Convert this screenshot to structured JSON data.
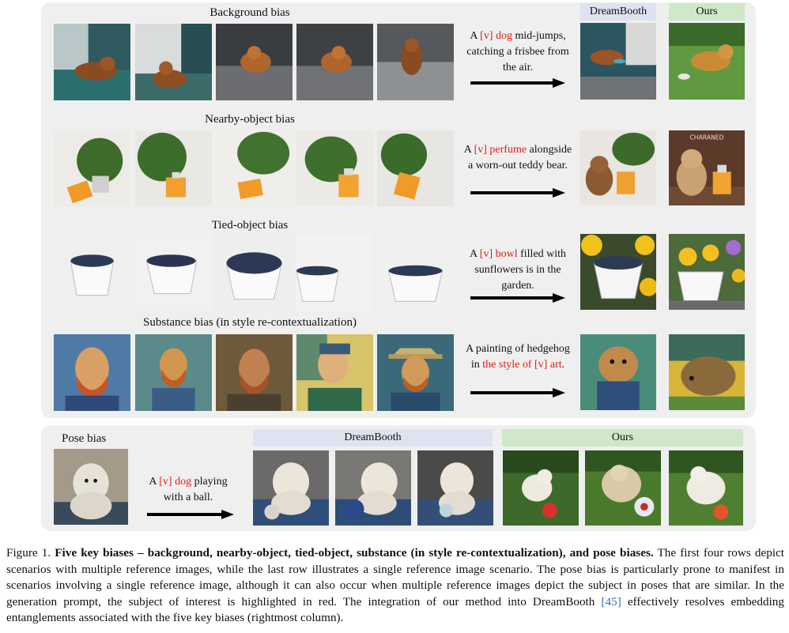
{
  "rows": [
    {
      "title": "Background bias",
      "prompt": {
        "pre": "A ",
        "hl": "[v] dog",
        "post": " mid-jumps, catching a frisbee from the air.",
        "hl2": "",
        "post2": ""
      },
      "images": [
        "dog-on-couch",
        "dog-on-couch",
        "dog-on-gray-sofa",
        "dog-on-gray-sofa",
        "dog-on-blanket"
      ],
      "dreambooth": "dog-leaping-indoors",
      "ours": "dog-leaping-on-grass"
    },
    {
      "title": "Nearby-object bias",
      "prompt": {
        "pre": "A ",
        "hl": "[v] perfume",
        "post": " alongside a worn-out teddy bear.",
        "hl2": "",
        "post2": ""
      },
      "images": [
        "perfume-with-plant",
        "perfume-with-plant",
        "perfume-with-plant",
        "perfume-with-plant",
        "perfume-with-plant"
      ],
      "dreambooth": "teddy-bear-perfume-plant",
      "ours": "teddy-bear-perfume",
      "ours_label": "CHARANED"
    },
    {
      "title": "Tied-object bias",
      "prompt": {
        "pre": "A ",
        "hl": "[v] bowl",
        "post": " filled with sunflowers is in the garden.",
        "hl2": "",
        "post2": ""
      },
      "images": [
        "bowl-with-blueberries",
        "bowl-with-blueberries",
        "bowl-with-blueberries",
        "bowl-with-blueberries",
        "bowl-with-blueberries"
      ],
      "dreambooth": "bowl-blueberries-sunflowers",
      "ours": "bowl-with-flowers"
    },
    {
      "title": "Substance bias (in style re-contextualization)",
      "prompt": {
        "pre": "A painting of hedgehog in ",
        "hl": "the style of [v] art",
        "post": ".",
        "hl2": "",
        "post2": ""
      },
      "images": [
        "van-gogh-portrait",
        "van-gogh-portrait",
        "van-gogh-portrait",
        "van-gogh-portrait",
        "van-gogh-portrait-hat"
      ],
      "dreambooth": "hedgehog-in-suit-painting",
      "ours": "hedgehog-painting"
    }
  ],
  "pose": {
    "title": "Pose bias",
    "prompt": {
      "pre": "A ",
      "hl": "[v] dog",
      "post": " playing with a ball."
    },
    "reference": "white-poodle-sitting",
    "dreambooth_header": "DreamBooth",
    "ours_header": "Ours",
    "dreambooth_images": [
      "poodle-with-ball-sitting",
      "poodle-with-ball-sitting",
      "poodle-with-ball-sitting"
    ],
    "ours_images": [
      "poodle-running-with-ball",
      "poodle-running-with-ball",
      "poodle-running-with-ball"
    ]
  },
  "headers": {
    "dreambooth": "DreamBooth",
    "ours": "Ours"
  },
  "caption": {
    "label": "Figure 1. ",
    "bold": "Five key biases – background, nearby-object, tied-object, substance (in style re-contextualization), and pose biases.",
    "text1": " The first four rows depict scenarios with multiple reference images, while the last row illustrates a single reference image scenario. The pose bias is particularly prone to manifest in scenarios involving a single reference image, although it can also occur when multiple reference images depict the subject in poses that are similar. In the generation prompt, the subject of interest is highlighted in red. The integration of our method into DreamBooth ",
    "cite": "[45]",
    "text2": " effectively resolves embedding entanglements associated with the five key biases (rightmost column)."
  },
  "colors": {
    "highlight": "#e31a1a",
    "dreambooth_header": "#dde3f0",
    "ours_header": "#cfe8c8",
    "panel": "#efefef",
    "citation": "#2f6fb5"
  }
}
